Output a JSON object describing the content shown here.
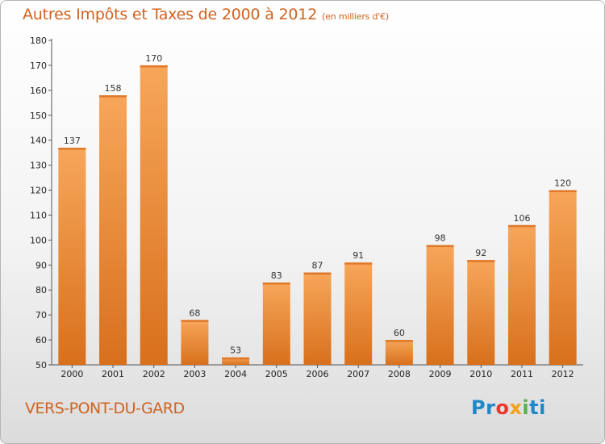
{
  "chart_data": {
    "type": "bar",
    "title": "Autres Impôts et Taxes de 2000 à 2012",
    "subtitle": "(en milliers d'€)",
    "categories": [
      "2000",
      "2001",
      "2002",
      "2003",
      "2004",
      "2005",
      "2006",
      "2007",
      "2008",
      "2009",
      "2010",
      "2011",
      "2012"
    ],
    "values": [
      137,
      158,
      170,
      68,
      53,
      83,
      87,
      91,
      60,
      98,
      92,
      106,
      120
    ],
    "ylim": [
      50,
      180
    ],
    "yticks": [
      50,
      60,
      70,
      80,
      90,
      100,
      110,
      120,
      130,
      140,
      150,
      160,
      170,
      180
    ],
    "grid": false,
    "bar_color": "#f0913a"
  },
  "footer": {
    "city": "VERS-PONT-DU-GARD",
    "logo": [
      "Pr",
      "o",
      "x",
      "i",
      "ti"
    ]
  }
}
